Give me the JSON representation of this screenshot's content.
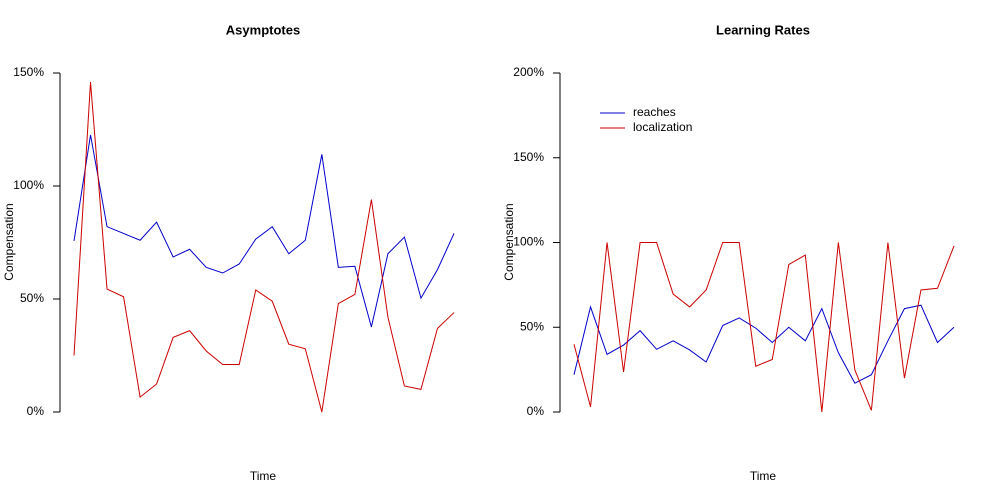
{
  "chart_data": [
    {
      "type": "line",
      "title": "Asymptotes",
      "xlabel": "Time",
      "ylabel": "Compensation",
      "ylim": [
        0,
        150
      ],
      "yticks": [
        {
          "value": 0,
          "label": "0%"
        },
        {
          "value": 50,
          "label": "50%"
        },
        {
          "value": 100,
          "label": "100%"
        },
        {
          "value": 150,
          "label": "150%"
        }
      ],
      "series": [
        {
          "color": "#0000cd",
          "values": [
            75.7,
            122.6,
            82,
            79,
            76,
            84,
            68.6,
            72,
            64,
            61.5,
            65.5,
            76.5,
            82,
            70,
            76,
            114,
            64,
            64.5,
            37.6,
            70,
            77.4,
            50.4,
            63,
            79
          ]
        },
        {
          "color": "#cd0000",
          "values": [
            25,
            146,
            54.4,
            51,
            6.6,
            12.4,
            33,
            36,
            27,
            21,
            21,
            54,
            49,
            30,
            28,
            0,
            48,
            52,
            94,
            42,
            11.5,
            10,
            37,
            44
          ]
        }
      ]
    },
    {
      "type": "line",
      "title": "Learning Rates",
      "xlabel": "Time",
      "ylabel": "Compensation",
      "ylim": [
        0,
        200
      ],
      "yticks": [
        {
          "value": 0,
          "label": "0%"
        },
        {
          "value": 50,
          "label": "50%"
        },
        {
          "value": 100,
          "label": "100%"
        },
        {
          "value": 150,
          "label": "150%"
        },
        {
          "value": 200,
          "label": "200%"
        }
      ],
      "legend": "topleft",
      "series": [
        {
          "name": "reaches",
          "color": "#0000cd",
          "values": [
            22,
            62,
            34,
            39.5,
            48,
            37,
            42,
            36.6,
            29.5,
            51,
            55.5,
            49.5,
            41,
            50,
            42,
            61,
            35,
            17,
            22,
            42,
            61,
            63,
            41,
            50
          ]
        },
        {
          "name": "localization",
          "color": "#cd0000",
          "values": [
            40,
            3,
            100,
            23.6,
            100,
            100,
            69.6,
            62,
            72,
            100,
            100,
            27,
            31,
            87,
            92.6,
            0,
            100,
            24.8,
            1,
            100,
            20,
            72,
            73,
            98
          ]
        }
      ]
    }
  ]
}
